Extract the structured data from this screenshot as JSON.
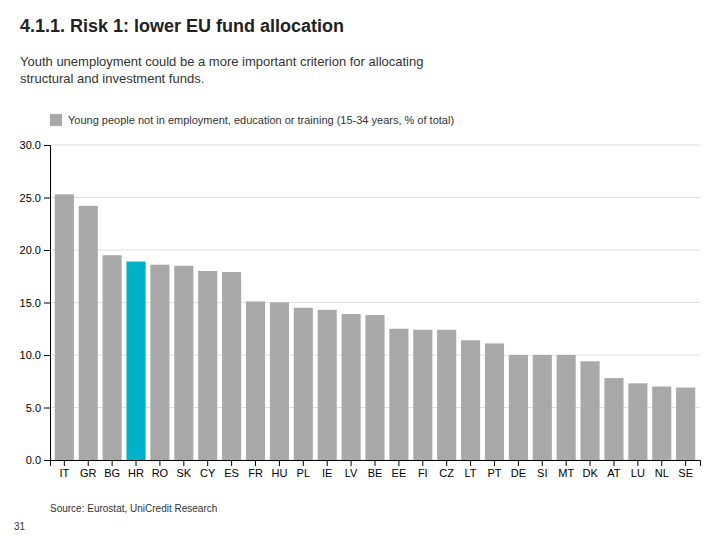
{
  "chart_data": {
    "type": "bar",
    "title": "4.1.1. Risk 1: lower EU fund allocation",
    "subtitle": "Youth unemployment could be a more important criterion for allocating\nstructural and investment funds.",
    "annotations": [
      "Source: Eurostat, UniCredit Research",
      "31"
    ],
    "categories": [
      "IT",
      "GR",
      "BG",
      "HR",
      "RO",
      "SK",
      "CY",
      "ES",
      "FR",
      "HU",
      "PL",
      "IE",
      "LV",
      "BE",
      "EE",
      "FI",
      "CZ",
      "LT",
      "PT",
      "DE",
      "SI",
      "MT",
      "DK",
      "AT",
      "LU",
      "NL",
      "SE"
    ],
    "series": [
      {
        "name": "Young people not in employment, education or training (15-34 years, % of total)",
        "color": "#a8a8a8",
        "colors": [
          "#a8a8a8",
          "#a8a8a8",
          "#a8a8a8",
          "#00b0c8",
          "#a8a8a8",
          "#a8a8a8",
          "#a8a8a8",
          "#a8a8a8",
          "#a8a8a8",
          "#a8a8a8",
          "#a8a8a8",
          "#a8a8a8",
          "#a8a8a8",
          "#a8a8a8",
          "#a8a8a8",
          "#a8a8a8",
          "#a8a8a8",
          "#a8a8a8",
          "#a8a8a8",
          "#a8a8a8",
          "#a8a8a8",
          "#a8a8a8",
          "#a8a8a8",
          "#a8a8a8",
          "#a8a8a8",
          "#a8a8a8",
          "#a8a8a8"
        ],
        "values": [
          25.3,
          24.2,
          19.5,
          18.9,
          18.6,
          18.5,
          18.0,
          17.9,
          15.1,
          15.0,
          14.5,
          14.3,
          13.9,
          13.8,
          12.5,
          12.4,
          12.4,
          11.4,
          11.1,
          10.0,
          10.0,
          10.0,
          9.4,
          7.8,
          7.3,
          7.0,
          6.9
        ]
      }
    ],
    "ylim": [
      0,
      30
    ],
    "yticks": [
      {
        "value": 0,
        "label": "0.0"
      },
      {
        "value": 5,
        "label": "5.0"
      },
      {
        "value": 10,
        "label": "10.0"
      },
      {
        "value": 15,
        "label": "15.0"
      },
      {
        "value": 20,
        "label": "20.0"
      },
      {
        "value": 25,
        "label": "25.0"
      },
      {
        "value": 30,
        "label": "30.0"
      }
    ],
    "grid": true,
    "legend": "upper left"
  }
}
